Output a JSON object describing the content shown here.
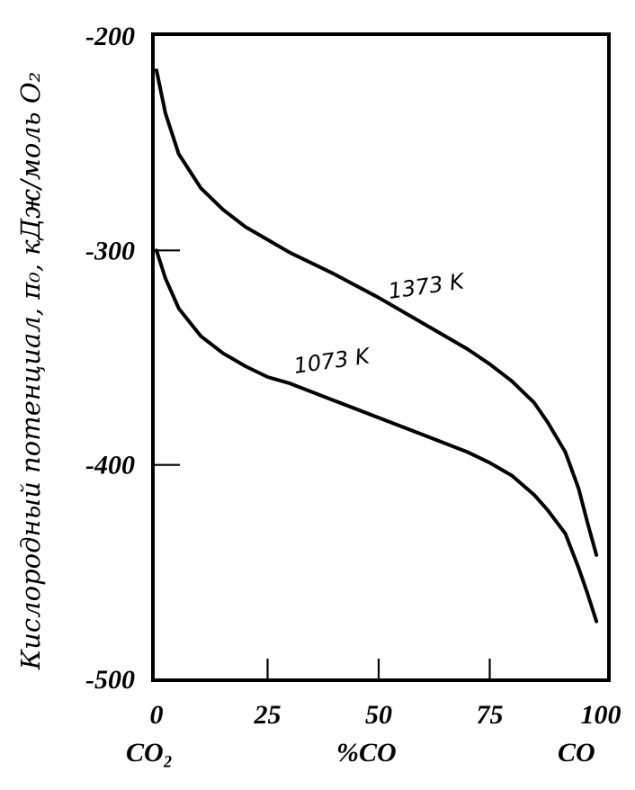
{
  "chart_data": {
    "type": "line",
    "title": "",
    "xlabel": "%CO",
    "ylabel": "Кислородный потенциал, π₀, кДж/моль O₂",
    "xlim": [
      0,
      100
    ],
    "ylim": [
      -500,
      -200
    ],
    "x_ticks": [
      "0",
      "25",
      "50",
      "75",
      "100"
    ],
    "y_ticks": [
      "-200",
      "-300",
      "-400",
      "-500"
    ],
    "x_left_label": "CO₂",
    "x_right_label": "CO",
    "grid": false,
    "series": [
      {
        "name": "1373 K",
        "x": [
          0,
          2,
          5,
          10,
          15,
          20,
          25,
          30,
          40,
          50,
          60,
          70,
          75,
          80,
          85,
          88,
          92,
          95,
          97,
          99
        ],
        "y": [
          -216,
          -236,
          -255,
          -271,
          -281,
          -289,
          -295,
          -301,
          -311,
          -322,
          -334,
          -346,
          -353,
          -361,
          -371,
          -380,
          -394,
          -411,
          -427,
          -442
        ]
      },
      {
        "name": "1073 K",
        "x": [
          0,
          2,
          5,
          10,
          15,
          20,
          25,
          30,
          40,
          50,
          60,
          70,
          75,
          80,
          85,
          88,
          92,
          95,
          97,
          99
        ],
        "y": [
          -300,
          -313,
          -327,
          -340,
          -348,
          -354,
          -359,
          -362,
          -370,
          -378,
          -386,
          -394,
          -399,
          -405,
          -414,
          -421,
          -432,
          -448,
          -460,
          -473
        ]
      }
    ]
  }
}
